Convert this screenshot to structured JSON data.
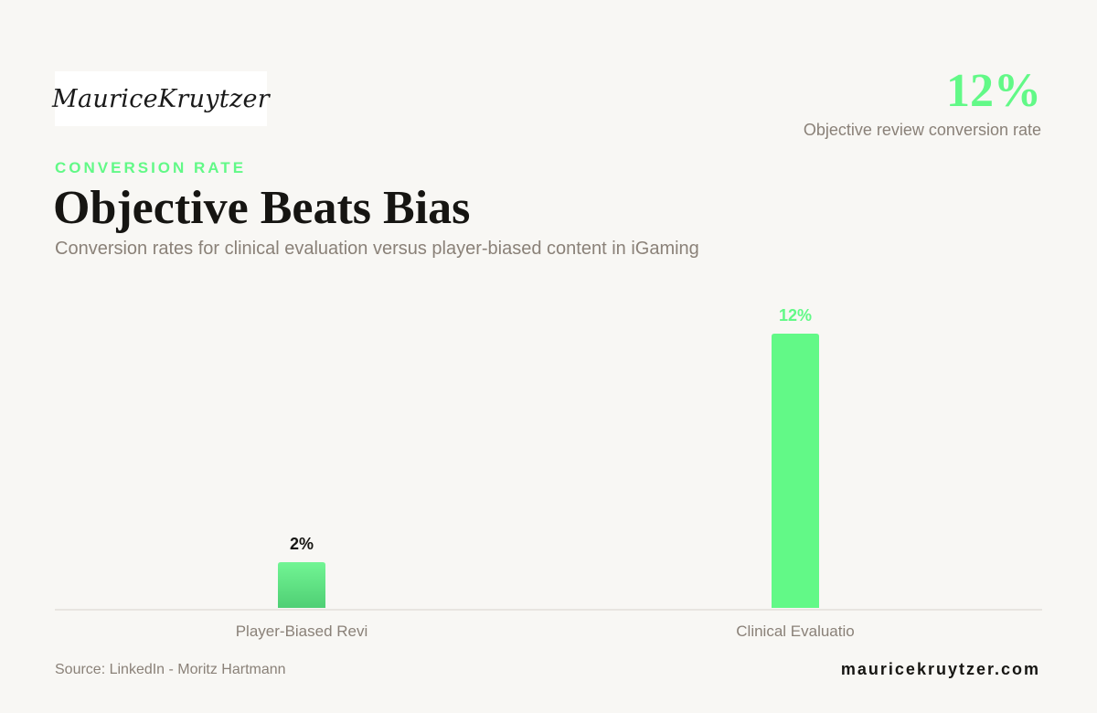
{
  "brand": {
    "logo_text": "MauriceKruytzer",
    "website": "mauricekruytzer.com"
  },
  "kpi": {
    "value": "12%",
    "label": "Objective review conversion rate"
  },
  "header": {
    "eyebrow": "CONVERSION RATE",
    "title": "Objective Beats Bias",
    "subtitle": "Conversion rates for clinical evaluation versus player-biased content in iGaming"
  },
  "footer": {
    "source": "Source: LinkedIn - Moritz Hartmann"
  },
  "colors": {
    "accent": "#62f987",
    "bar_muted": "#52d27a",
    "text_dark": "#161512",
    "text_muted": "#8a8178",
    "background": "#f8f7f4"
  },
  "chart_data": {
    "type": "bar",
    "categories": [
      "Player-Biased Revi",
      "Clinical Evaluatio"
    ],
    "values": [
      2,
      12
    ],
    "value_labels": [
      "2%",
      "12%"
    ],
    "ylim": [
      0,
      12
    ],
    "grid": false,
    "legend": "none"
  }
}
